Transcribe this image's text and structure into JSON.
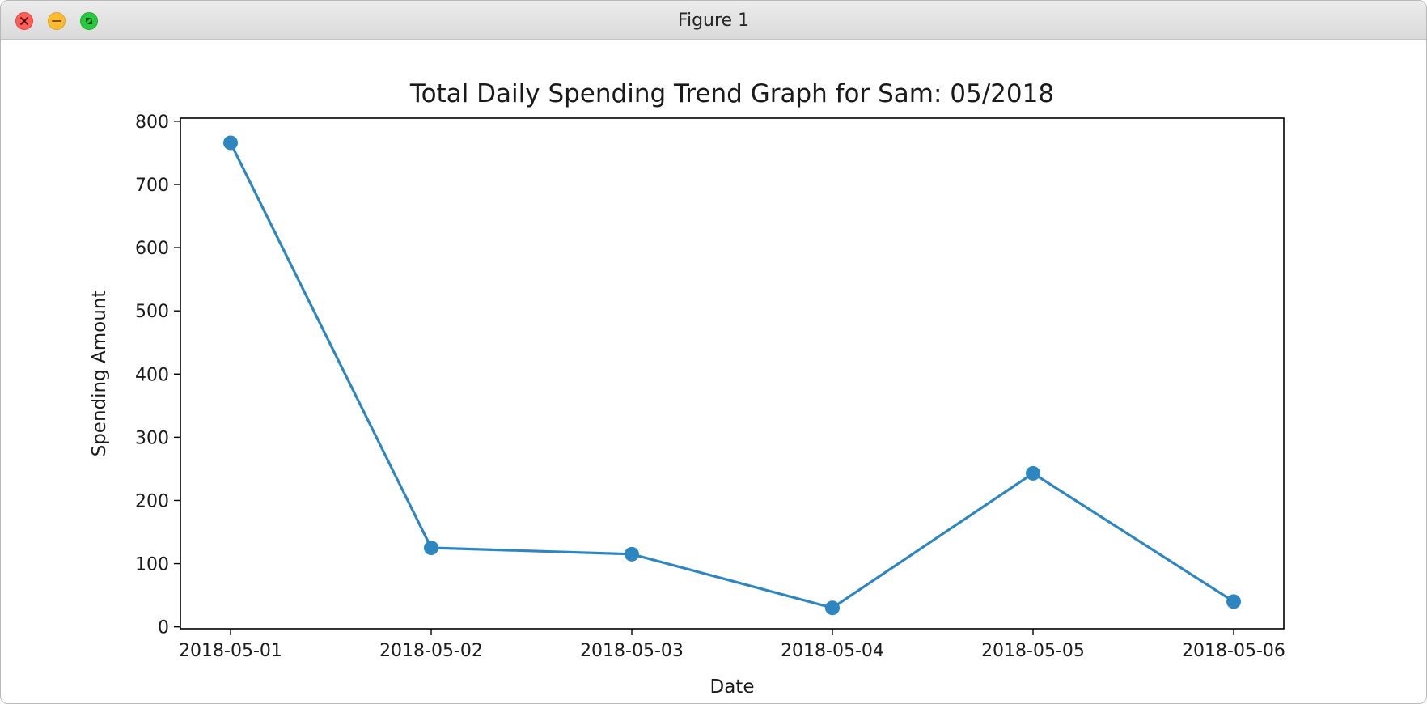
{
  "window": {
    "title": "Figure 1",
    "controls": [
      "close-icon",
      "minimize-icon",
      "zoom-icon"
    ],
    "control_colors": {
      "close": "#fc5f57",
      "minimize": "#fdbc2e",
      "zoom": "#28c840"
    }
  },
  "chart_data": {
    "type": "line",
    "title": "Total Daily Spending Trend Graph for Sam: 05/2018",
    "xlabel": "Date",
    "ylabel": "Spending Amount",
    "categories": [
      "2018-05-01",
      "2018-05-02",
      "2018-05-03",
      "2018-05-04",
      "2018-05-05",
      "2018-05-06"
    ],
    "series": [
      {
        "values": [
          766,
          125,
          115,
          30,
          243,
          40
        ],
        "color": "#2e86c1",
        "marker": "circle"
      }
    ],
    "ylim": [
      -3,
      805
    ],
    "yticks": [
      0,
      100,
      200,
      300,
      400,
      500,
      600,
      700,
      800
    ],
    "grid": false,
    "legend": "none"
  }
}
